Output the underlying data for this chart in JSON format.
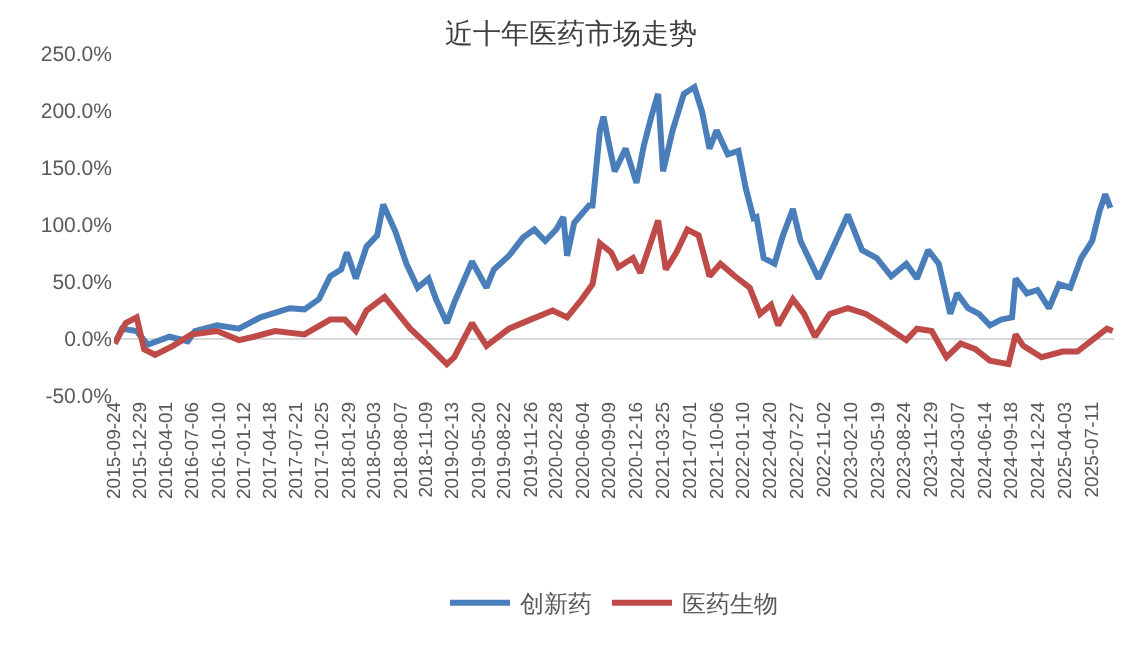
{
  "chart_data": {
    "type": "line",
    "title": "近十年医药市场走势",
    "legend": "bottom",
    "grid": false,
    "marker": "none",
    "line_style": "solid",
    "xlim": [
      "2015-09-24",
      "2025-09-30"
    ],
    "xticks": [
      "2015-09-24",
      "2015-12-29",
      "2016-04-01",
      "2016-07-06",
      "2016-10-10",
      "2017-01-12",
      "2017-04-18",
      "2017-07-21",
      "2017-10-25",
      "2018-01-29",
      "2018-05-03",
      "2018-08-07",
      "2018-11-09",
      "2019-02-13",
      "2019-05-20",
      "2019-08-22",
      "2019-11-26",
      "2020-02-28",
      "2020-06-04",
      "2020-09-09",
      "2020-12-16",
      "2021-03-25",
      "2021-07-01",
      "2021-10-06",
      "2022-01-10",
      "2022-04-20",
      "2022-07-27",
      "2022-11-02",
      "2023-02-10",
      "2023-05-19",
      "2023-08-24",
      "2023-11-29",
      "2024-03-07",
      "2024-06-14",
      "2024-09-18",
      "2024-12-24",
      "2025-04-03",
      "2025-07-11"
    ],
    "ylim": [
      -50,
      250
    ],
    "ref_lines": [
      {
        "axis": "y",
        "value": 0,
        "color": "#d9d9d9"
      }
    ],
    "yticks": [
      {
        "value": -50,
        "label": "-50.0%"
      },
      {
        "value": 0,
        "label": "0.0%"
      },
      {
        "value": 50,
        "label": "50.0%"
      },
      {
        "value": 100,
        "label": "100.0%"
      },
      {
        "value": 150,
        "label": "150.0%"
      },
      {
        "value": 200,
        "label": "200.0%"
      },
      {
        "value": 250,
        "label": "250.0%"
      }
    ],
    "series": [
      {
        "name": "创新药",
        "color": "#4a7ebb",
        "x": [
          "2015-09-27",
          "2015-10-23",
          "2015-12-16",
          "2016-01-25",
          "2016-04-14",
          "2016-06-20",
          "2016-07-16",
          "2016-10-05",
          "2016-12-24",
          "2017-03-13",
          "2017-06-28",
          "2017-08-21",
          "2017-10-13",
          "2017-11-23",
          "2018-01-02",
          "2018-01-23",
          "2018-02-25",
          "2018-04-05",
          "2018-05-14",
          "2018-06-05",
          "2018-07-20",
          "2018-08-29",
          "2018-10-09",
          "2018-11-18",
          "2018-12-15",
          "2019-01-24",
          "2019-02-20",
          "2019-04-26",
          "2019-06-18",
          "2019-07-15",
          "2019-09-08",
          "2019-10-30",
          "2019-12-10",
          "2020-01-19",
          "2020-02-28",
          "2020-03-25",
          "2020-04-08",
          "2020-05-04",
          "2020-06-27",
          "2020-07-10",
          "2020-08-06",
          "2020-08-19",
          "2020-09-02",
          "2020-09-29",
          "2020-11-08",
          "2020-12-18",
          "2021-01-14",
          "2021-02-10",
          "2021-03-07",
          "2021-03-25",
          "2021-04-29",
          "2021-06-09",
          "2021-07-18",
          "2021-08-14",
          "2021-09-11",
          "2021-10-07",
          "2021-11-17",
          "2021-12-26",
          "2022-01-22",
          "2022-02-19",
          "2022-03-02",
          "2022-03-28",
          "2022-05-07",
          "2022-06-04",
          "2022-07-13",
          "2022-08-10",
          "2022-10-15",
          "2022-12-08",
          "2023-01-30",
          "2023-03-23",
          "2023-05-16",
          "2023-07-08",
          "2023-09-01",
          "2023-10-10",
          "2023-11-20",
          "2023-12-29",
          "2024-02-09",
          "2024-03-05",
          "2024-04-14",
          "2024-05-24",
          "2024-07-03",
          "2024-08-13",
          "2024-09-22",
          "2024-10-05",
          "2024-11-15",
          "2024-12-24",
          "2025-02-04",
          "2025-03-13",
          "2025-04-23",
          "2025-06-02",
          "2025-07-12",
          "2025-08-08",
          "2025-08-29",
          "2025-09-17"
        ],
        "values": [
          -4,
          9,
          7,
          -5,
          2,
          -2,
          7,
          12,
          9,
          19,
          27,
          26,
          35,
          55,
          61,
          76,
          53,
          81,
          91,
          118,
          94,
          66,
          45,
          53,
          35,
          14,
          32,
          68,
          45,
          61,
          73,
          89,
          96,
          86,
          96,
          107,
          73,
          102,
          117,
          117,
          183,
          195,
          178,
          147,
          167,
          137,
          170,
          195,
          215,
          147,
          183,
          215,
          221,
          200,
          167,
          183,
          162,
          165,
          132,
          106,
          107,
          71,
          66,
          89,
          114,
          86,
          53,
          81,
          109,
          78,
          71,
          55,
          66,
          53,
          78,
          66,
          22,
          40,
          27,
          22,
          12,
          17,
          19,
          53,
          40,
          43,
          27,
          48,
          45,
          71,
          86,
          112,
          127,
          115
        ]
      },
      {
        "name": "医药生物",
        "color": "#be4b48",
        "x": [
          "2015-09-27",
          "2015-11-06",
          "2015-12-16",
          "2016-01-12",
          "2016-02-21",
          "2016-04-27",
          "2016-07-03",
          "2016-10-05",
          "2016-12-24",
          "2017-02-17",
          "2017-05-05",
          "2017-08-21",
          "2017-11-23",
          "2018-01-16",
          "2018-02-25",
          "2018-04-05",
          "2018-06-10",
          "2018-07-20",
          "2018-09-12",
          "2018-11-18",
          "2019-01-24",
          "2019-02-20",
          "2019-04-26",
          "2019-06-18",
          "2019-09-08",
          "2019-11-26",
          "2020-02-15",
          "2020-04-08",
          "2020-06-01",
          "2020-07-10",
          "2020-08-06",
          "2020-09-16",
          "2020-10-12",
          "2020-12-05",
          "2021-01-01",
          "2021-02-24",
          "2021-03-07",
          "2021-04-04",
          "2021-05-13",
          "2021-06-22",
          "2021-08-02",
          "2021-09-11",
          "2021-10-21",
          "2021-12-13",
          "2022-02-05",
          "2022-03-15",
          "2022-04-24",
          "2022-05-20",
          "2022-07-13",
          "2022-08-23",
          "2022-10-02",
          "2022-11-25",
          "2023-01-30",
          "2023-04-06",
          "2023-06-12",
          "2023-09-01",
          "2023-10-10",
          "2023-12-03",
          "2024-01-26",
          "2024-03-18",
          "2024-05-11",
          "2024-07-03",
          "2024-09-09",
          "2024-10-05",
          "2024-11-02",
          "2025-01-08",
          "2025-03-26",
          "2025-05-19",
          "2025-07-12",
          "2025-09-04",
          "2025-09-25"
        ],
        "values": [
          -4,
          14,
          19,
          -9,
          -14,
          -6,
          4,
          7,
          -1,
          2,
          7,
          4,
          17,
          17,
          7,
          25,
          37,
          25,
          9,
          -6,
          -22,
          -16,
          14,
          -6,
          9,
          17,
          25,
          19,
          35,
          48,
          84,
          76,
          63,
          71,
          58,
          96,
          104,
          61,
          76,
          96,
          91,
          55,
          66,
          55,
          45,
          22,
          30,
          12,
          35,
          22,
          2,
          22,
          27,
          22,
          12,
          -1,
          9,
          7,
          -16,
          -4,
          -9,
          -19,
          -22,
          4,
          -6,
          -16,
          -11,
          -11,
          -1,
          9,
          7
        ]
      }
    ]
  }
}
